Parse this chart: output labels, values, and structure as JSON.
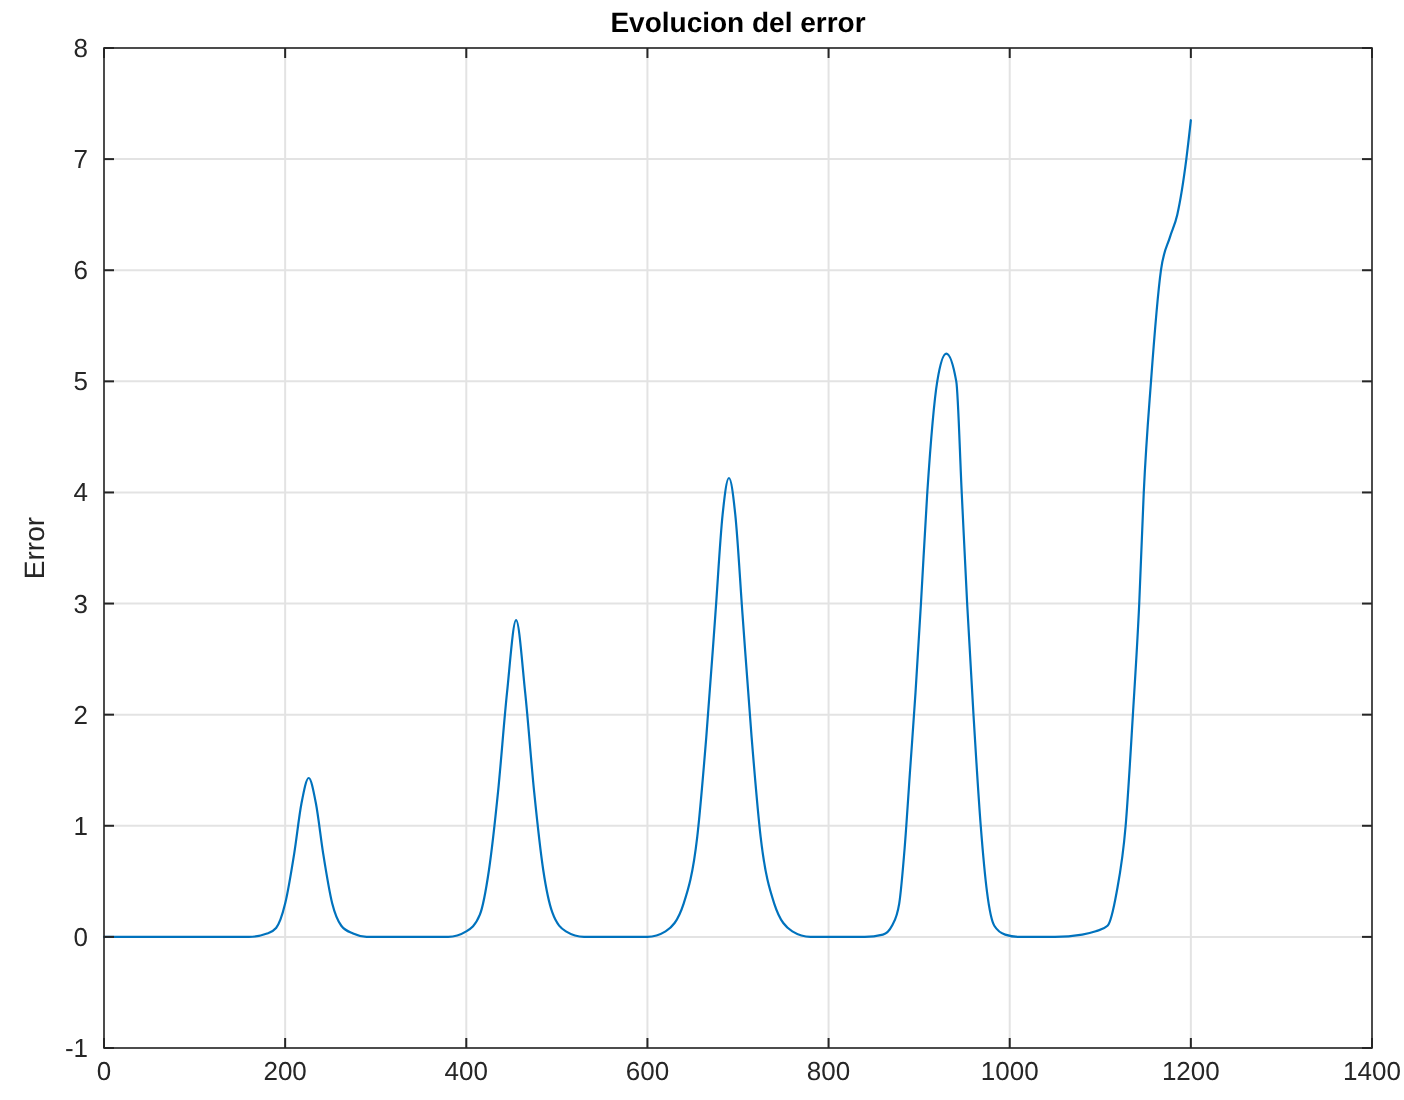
{
  "chart_data": {
    "type": "line",
    "title": "Evolucion del error",
    "ylabel": "Error",
    "xlim": [
      0,
      1400
    ],
    "ylim": [
      -1,
      8
    ],
    "xticks": [
      0,
      200,
      400,
      600,
      800,
      1000,
      1200,
      1400
    ],
    "yticks": [
      -1,
      0,
      1,
      2,
      3,
      4,
      5,
      6,
      7,
      8
    ],
    "grid": true,
    "line_style": "solid",
    "series": [
      {
        "color": "#0072bd",
        "x": [
          0,
          50,
          100,
          150,
          160,
          180,
          190,
          200,
          210,
          218,
          226,
          234,
          242,
          252,
          262,
          275,
          290,
          300,
          340,
          380,
          400,
          415,
          425,
          435,
          445,
          455,
          465,
          475,
          485,
          495,
          510,
          530,
          570,
          600,
          620,
          640,
          655,
          665,
          675,
          683,
          690,
          697,
          705,
          715,
          725,
          740,
          760,
          780,
          820,
          840,
          860,
          870,
          878,
          884,
          890,
          896,
          902,
          909,
          920,
          930,
          941,
          947,
          953,
          960,
          968,
          975,
          983,
          995,
          1010,
          1050,
          1080,
          1095,
          1108,
          1118,
          1128,
          1136,
          1143,
          1148,
          1156,
          1167,
          1177,
          1185,
          1195,
          1200
        ],
        "values": [
          0,
          0,
          0,
          0,
          0,
          0.03,
          0.08,
          0.3,
          0.75,
          1.2,
          1.43,
          1.2,
          0.75,
          0.3,
          0.1,
          0.03,
          0,
          0,
          0,
          0,
          0.05,
          0.2,
          0.6,
          1.3,
          2.2,
          2.85,
          2.2,
          1.3,
          0.6,
          0.22,
          0.05,
          0,
          0,
          0,
          0.05,
          0.3,
          0.9,
          1.8,
          2.9,
          3.8,
          4.13,
          3.8,
          2.9,
          1.8,
          0.9,
          0.3,
          0.05,
          0,
          0,
          0,
          0.02,
          0.1,
          0.3,
          0.8,
          1.5,
          2.2,
          3.0,
          4.0,
          5.0,
          5.25,
          5.0,
          4.0,
          3.0,
          2.0,
          1.0,
          0.4,
          0.1,
          0.02,
          0,
          0,
          0.02,
          0.05,
          0.1,
          0.4,
          1.0,
          2.0,
          3.0,
          4.0,
          5.0,
          6.0,
          6.3,
          6.5,
          7.0,
          7.35
        ]
      }
    ]
  }
}
